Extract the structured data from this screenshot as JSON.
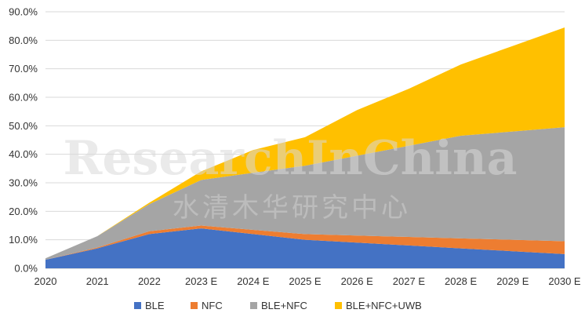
{
  "watermark": {
    "primary": "ResearchInChina",
    "secondary": "水清木华研究中心"
  },
  "chart_data": {
    "type": "area",
    "stacked": true,
    "categories": [
      "2020",
      "2021",
      "2022",
      "2023 E",
      "2024 E",
      "2025 E",
      "2026 E",
      "2027 E",
      "2028 E",
      "2029 E",
      "2030 E"
    ],
    "ylim": [
      0,
      90
    ],
    "yticks": [
      "0.0%",
      "10.0%",
      "20.0%",
      "30.0%",
      "40.0%",
      "50.0%",
      "60.0%",
      "70.0%",
      "80.0%",
      "90.0%"
    ],
    "grid": true,
    "legend_position": "bottom",
    "series": [
      {
        "name": "BLE",
        "color": "#4472C4",
        "values": [
          3.0,
          7.0,
          12.0,
          14.0,
          12.0,
          10.0,
          9.0,
          8.0,
          7.0,
          6.0,
          5.0
        ]
      },
      {
        "name": "NFC",
        "color": "#ED7D31",
        "values": [
          0.0,
          0.3,
          1.0,
          1.0,
          1.5,
          2.0,
          2.5,
          3.0,
          3.5,
          4.0,
          4.5
        ]
      },
      {
        "name": "BLE+NFC",
        "color": "#A5A5A5",
        "values": [
          0.5,
          4.0,
          9.5,
          16.0,
          20.0,
          24.0,
          28.0,
          32.0,
          36.0,
          38.0,
          40.0
        ]
      },
      {
        "name": "BLE+NFC+UWB",
        "color": "#FFC000",
        "values": [
          0.0,
          0.0,
          0.5,
          3.0,
          8.0,
          10.0,
          16.0,
          20.0,
          25.0,
          30.0,
          35.0
        ]
      }
    ]
  }
}
